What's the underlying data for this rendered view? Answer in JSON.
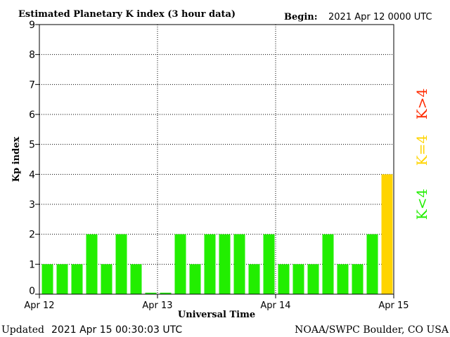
{
  "header": {
    "title": "Estimated Planetary K index (3 hour data)",
    "begin_label": "Begin:",
    "begin_value": "2021 Apr 12 0000 UTC"
  },
  "footer": {
    "updated_label": "Updated",
    "updated_value": "2021 Apr 15 00:30:03 UTC",
    "source": "NOAA/SWPC Boulder, CO USA"
  },
  "legend": {
    "low": "K<4",
    "mid": "K=4",
    "high": "K>4"
  },
  "colors": {
    "low": "#22ee00",
    "mid": "#ffd400",
    "high": "#ff2a00",
    "axis": "#000000",
    "grid": "#000000"
  },
  "chart_data": {
    "type": "bar",
    "title": "Estimated Planetary K index (3 hour data)",
    "xlabel": "Universal Time",
    "ylabel": "Kp index",
    "ylim": [
      0,
      9
    ],
    "yticks": [
      0,
      1,
      2,
      3,
      4,
      5,
      6,
      7,
      8,
      9
    ],
    "xticks": [
      "Apr 12",
      "Apr 13",
      "Apr 14",
      "Apr 15"
    ],
    "bin_hours": 3,
    "grid": true,
    "legend_position": "right",
    "values": [
      1,
      1,
      1,
      2,
      1,
      2,
      1,
      0.05,
      0.05,
      2,
      1,
      2,
      2,
      2,
      1,
      2,
      1,
      1,
      1,
      2,
      1,
      1,
      2,
      4
    ]
  }
}
